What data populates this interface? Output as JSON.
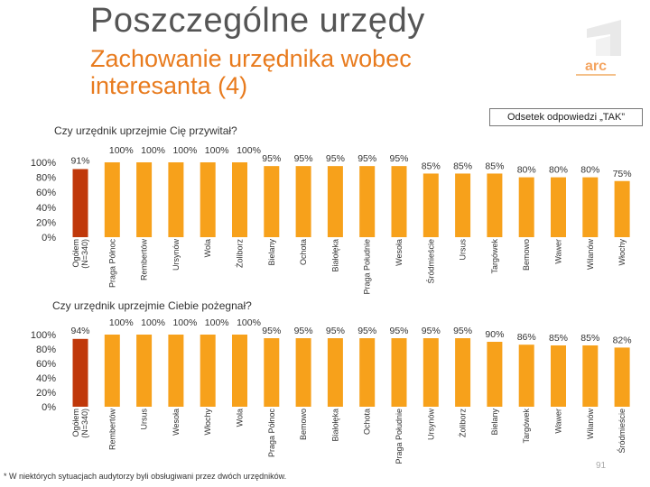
{
  "page": {
    "title": "Poszczególne urzędy",
    "subtitle": "Zachowanie urzędnika wobec interesanta (4)",
    "legend_label": "Odsetek odpowiedzi „TAK”",
    "footnote": "* W niektórych sytuacjach audytorzy byli obsługiwani przez dwóch urzędników.",
    "page_number": "91"
  },
  "colors": {
    "bar": "#f7a11b",
    "highlight_bar": "#c0380a",
    "subtitle": "#e87b1e"
  },
  "chart_data": [
    {
      "type": "bar",
      "title": "Czy urzędnik uprzejmie Cię przywitał?",
      "ylim": [
        0,
        100
      ],
      "yticks": [
        "100%",
        "80%",
        "60%",
        "40%",
        "20%",
        "0%"
      ],
      "categories": [
        "Ogółem (N=340)",
        "Praga Północ",
        "Rembertów",
        "Ursynów",
        "Wola",
        "Żoliborz",
        "Bielany",
        "Ochota",
        "Białołęka",
        "Praga Południe",
        "Wesoła",
        "Śródmieście",
        "Ursus",
        "Targówek",
        "Bemowo",
        "Wawer",
        "Wilanów",
        "Włochy"
      ],
      "values": [
        91,
        100,
        100,
        100,
        100,
        100,
        95,
        95,
        95,
        95,
        95,
        85,
        85,
        85,
        80,
        80,
        80,
        75
      ],
      "value_labels": [
        "91%",
        "100%",
        "100%",
        "100%",
        "100%",
        "100%",
        "95%",
        "95%",
        "95%",
        "95%",
        "95%",
        "85%",
        "85%",
        "85%",
        "80%",
        "80%",
        "80%",
        "75%"
      ]
    },
    {
      "type": "bar",
      "title": "Czy urzędnik uprzejmie Ciebie pożegnał?",
      "ylim": [
        0,
        100
      ],
      "yticks": [
        "100%",
        "80%",
        "60%",
        "40%",
        "20%",
        "0%"
      ],
      "categories": [
        "Ogółem (N=340)",
        "Rembertów",
        "Ursus",
        "Wesoła",
        "Włochy",
        "Wola",
        "Praga Północ",
        "Bemowo",
        "Białołęka",
        "Ochota",
        "Praga Południe",
        "Ursynów",
        "Żoliborz",
        "Bielany",
        "Targówek",
        "Wawer",
        "Wilanów",
        "Śródmieście"
      ],
      "values": [
        94,
        100,
        100,
        100,
        100,
        100,
        95,
        95,
        95,
        95,
        95,
        95,
        95,
        90,
        86,
        85,
        85,
        82
      ],
      "value_labels": [
        "94%",
        "100%",
        "100%",
        "100%",
        "100%",
        "100%",
        "95%",
        "95%",
        "95%",
        "95%",
        "95%",
        "95%",
        "95%",
        "90%",
        "86%",
        "85%",
        "85%",
        "82%"
      ]
    }
  ]
}
